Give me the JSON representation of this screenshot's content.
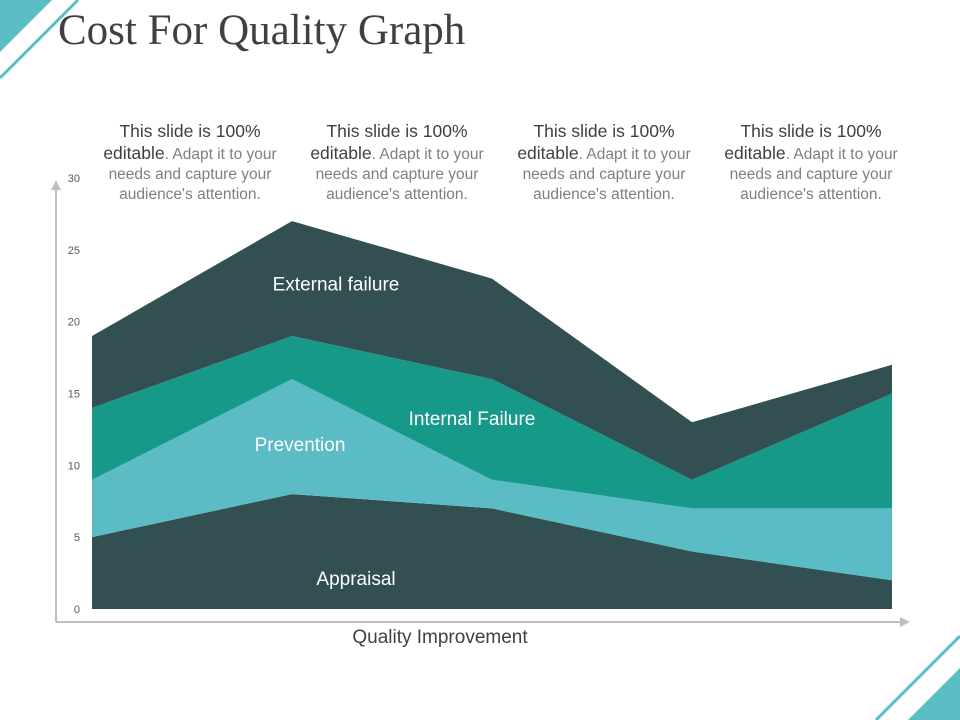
{
  "slide": {
    "title": "Cost For Quality Graph",
    "notes": [
      {
        "strong": "This slide is 100% editable",
        "rest": ". Adapt it to your needs and capture your audience's attention."
      },
      {
        "strong": "This slide is 100% editable",
        "rest": ". Adapt it to your needs and capture your audience's attention."
      },
      {
        "strong": "This slide is 100% editable",
        "rest": ". Adapt it to your needs and capture your audience's attention."
      },
      {
        "strong": "This slide is 100% editable",
        "rest": ". Adapt it to your needs and capture your audience's attention."
      }
    ],
    "accent_color": "#5bbcc6"
  },
  "chart_data": {
    "type": "area",
    "stacked": true,
    "title": "",
    "xlabel": "Quality Improvement",
    "ylabel": "",
    "ylim": [
      0,
      30
    ],
    "yticks": [
      0,
      5,
      10,
      15,
      20,
      25,
      30
    ],
    "x": [
      1,
      2,
      3,
      4,
      5
    ],
    "grid": false,
    "legend": "none",
    "series": [
      {
        "name": "Appraisal",
        "values": [
          5,
          8,
          7,
          4,
          2
        ],
        "color": "#324f51"
      },
      {
        "name": "Prevention",
        "values": [
          4,
          8,
          2,
          3,
          5
        ],
        "color": "#5bbcc6"
      },
      {
        "name": "Internal Failure",
        "values": [
          5,
          3,
          7,
          2,
          8
        ],
        "color": "#17998a"
      },
      {
        "name": "External failure",
        "values": [
          5,
          8,
          7,
          4,
          2
        ],
        "color": "#324f51"
      }
    ]
  }
}
